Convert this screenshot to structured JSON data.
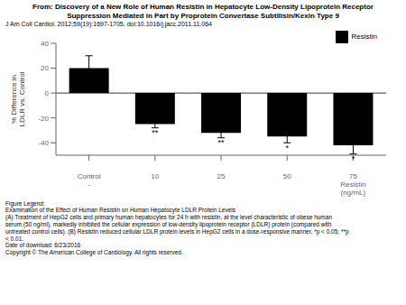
{
  "chart_data": {
    "type": "bar",
    "title": "From: Discovery of a New Role of Human Resistin in Hepatocyte Low-Density Lipoprotein Receptor\nSuppression Mediated in Part by Proprotein Convertase Subtilisin/Kexin Type 9",
    "subtitle": "J Am Coll Cardiol. 2012;59(19):1697-1705. doi:10.1016/j.jacc.2011.11.064",
    "categories": [
      "Control\n-",
      "10",
      "25",
      "50",
      "75\nResistin\n(ng/mL)"
    ],
    "series": [
      {
        "name": "Resistin",
        "color": "#000000",
        "values": [
          20,
          -25,
          -32,
          -35,
          -42
        ],
        "errors": [
          10,
          3,
          4,
          5,
          7
        ]
      }
    ],
    "y_label": "% Difference in\nLDLR vs. Control",
    "ylim": [
      -50,
      40
    ],
    "yticks": [
      40,
      20,
      0,
      -20,
      -40
    ],
    "grid": false,
    "legend": "upper right",
    "annotations": [
      {
        "category": "10",
        "text": "**"
      },
      {
        "category": "25",
        "text": "**"
      },
      {
        "category": "50",
        "text": "*"
      },
      {
        "category": "75\nResistin\n(ng/mL)",
        "text": "*"
      },
      {
        "text": "Figure Legend:"
      },
      {
        "text": "Examination of the Effect of Human Resistin on Human Hepatocyte LDLR Protein Levels"
      },
      {
        "text": "(A) Treatment of HepG2 cells and primary human hepatocytes  for 24 h with resistin, at the level characteristic  of obese human"
      },
      {
        "text": "serum (50 ng/ml), markedly inhibited the cellular expression of low-density lipoprotein receptor (LDLR)  protein (compared with"
      },
      {
        "text": "untreated control cells). (B) Resistin reduced cellular LDLR protein levels in HepG2 cells in a dose-responsive manner. *p < 0.05; **p"
      },
      {
        "text": "< 0.01."
      },
      {
        "text": "Date of download: 6/23/2016"
      },
      {
        "text": "Copyright © The American College of Cardiology. All rights reserved."
      }
    ]
  }
}
